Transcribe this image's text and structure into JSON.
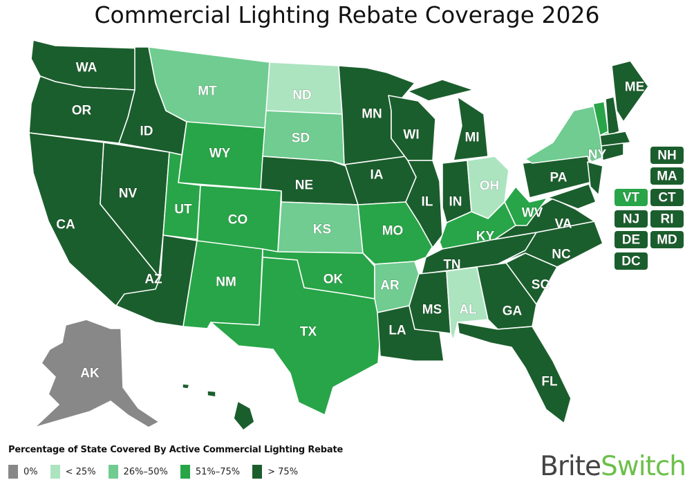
{
  "title": "Commercial Lighting Rebate Coverage 2026",
  "legend": {
    "title": "Percentage of State Covered By Active Commercial Lighting Rebate",
    "items": [
      {
        "tier": "0",
        "label": "0%",
        "color": "#888888"
      },
      {
        "tier": "1",
        "label": "< 25%",
        "color": "#ace4c0"
      },
      {
        "tier": "2",
        "label": "26%–50%",
        "color": "#70cc90"
      },
      {
        "tier": "3",
        "label": "51%–75%",
        "color": "#28a548"
      },
      {
        "tier": "4",
        "label": "> 75%",
        "color": "#1b5e2d"
      }
    ]
  },
  "logo": {
    "part1": "Brite",
    "part2": "Switch"
  },
  "states": [
    {
      "code": "WA",
      "tier": "4"
    },
    {
      "code": "OR",
      "tier": "4"
    },
    {
      "code": "CA",
      "tier": "4"
    },
    {
      "code": "NV",
      "tier": "4"
    },
    {
      "code": "ID",
      "tier": "4"
    },
    {
      "code": "MT",
      "tier": "2"
    },
    {
      "code": "WY",
      "tier": "3"
    },
    {
      "code": "UT",
      "tier": "3"
    },
    {
      "code": "CO",
      "tier": "3"
    },
    {
      "code": "AZ",
      "tier": "4"
    },
    {
      "code": "NM",
      "tier": "3"
    },
    {
      "code": "ND",
      "tier": "1"
    },
    {
      "code": "SD",
      "tier": "2"
    },
    {
      "code": "NE",
      "tier": "4"
    },
    {
      "code": "KS",
      "tier": "2"
    },
    {
      "code": "OK",
      "tier": "3"
    },
    {
      "code": "TX",
      "tier": "3"
    },
    {
      "code": "MN",
      "tier": "4"
    },
    {
      "code": "IA",
      "tier": "4"
    },
    {
      "code": "MO",
      "tier": "3"
    },
    {
      "code": "AR",
      "tier": "2"
    },
    {
      "code": "LA",
      "tier": "4"
    },
    {
      "code": "WI",
      "tier": "4"
    },
    {
      "code": "IL",
      "tier": "4"
    },
    {
      "code": "MI",
      "tier": "4"
    },
    {
      "code": "IN",
      "tier": "4"
    },
    {
      "code": "OH",
      "tier": "1"
    },
    {
      "code": "KY",
      "tier": "3"
    },
    {
      "code": "TN",
      "tier": "4"
    },
    {
      "code": "MS",
      "tier": "4"
    },
    {
      "code": "AL",
      "tier": "1"
    },
    {
      "code": "GA",
      "tier": "4"
    },
    {
      "code": "FL",
      "tier": "4"
    },
    {
      "code": "SC",
      "tier": "4"
    },
    {
      "code": "NC",
      "tier": "4"
    },
    {
      "code": "VA",
      "tier": "4"
    },
    {
      "code": "WV",
      "tier": "3"
    },
    {
      "code": "PA",
      "tier": "4"
    },
    {
      "code": "NY",
      "tier": "2"
    },
    {
      "code": "ME",
      "tier": "4"
    },
    {
      "code": "AK",
      "tier": "0"
    },
    {
      "code": "HI",
      "tier": "4"
    },
    {
      "code": "NH",
      "tier": "4"
    },
    {
      "code": "MA",
      "tier": "4"
    },
    {
      "code": "VT",
      "tier": "3"
    },
    {
      "code": "CT",
      "tier": "4"
    },
    {
      "code": "NJ",
      "tier": "4"
    },
    {
      "code": "RI",
      "tier": "4"
    },
    {
      "code": "DE",
      "tier": "4"
    },
    {
      "code": "MD",
      "tier": "4"
    },
    {
      "code": "DC",
      "tier": "4"
    }
  ]
}
